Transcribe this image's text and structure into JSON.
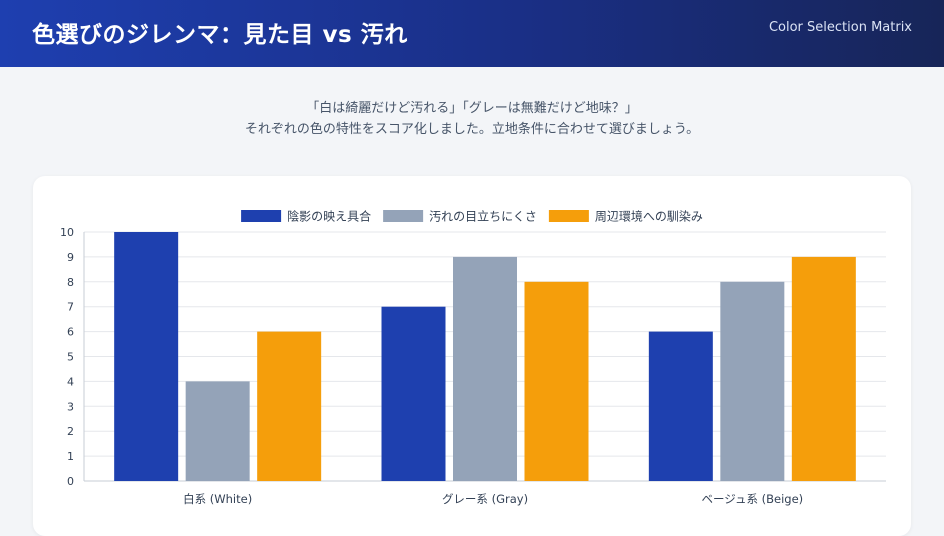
{
  "header": {
    "title": "色選びのジレンマ：見た目 vs 汚れ",
    "subtitle": "Color Selection Matrix"
  },
  "intro": {
    "line1": "「白は綺麗だけど汚れる」「グレーは無難だけど地味？」",
    "line2": "それぞれの色の特性をスコア化しました。立地条件に合わせて選びましょう。"
  },
  "chart_data": {
    "type": "bar",
    "title": "",
    "xlabel": "",
    "ylabel": "",
    "ylim": [
      0,
      10
    ],
    "yticks": [
      0,
      1,
      2,
      3,
      4,
      5,
      6,
      7,
      8,
      9,
      10
    ],
    "grid": true,
    "legend_position": "top-center",
    "categories": [
      "白系 (White)",
      "グレー系 (Gray)",
      "ベージュ系 (Beige)"
    ],
    "series": [
      {
        "name": "陰影の映え具合",
        "color": "#1e40af",
        "values": [
          10,
          7,
          6
        ]
      },
      {
        "name": "汚れの目立ちにくさ",
        "color": "#94a3b8",
        "values": [
          4,
          9,
          8
        ]
      },
      {
        "name": "周辺環境への馴染み",
        "color": "#f59e0b",
        "values": [
          6,
          8,
          9
        ]
      }
    ]
  }
}
